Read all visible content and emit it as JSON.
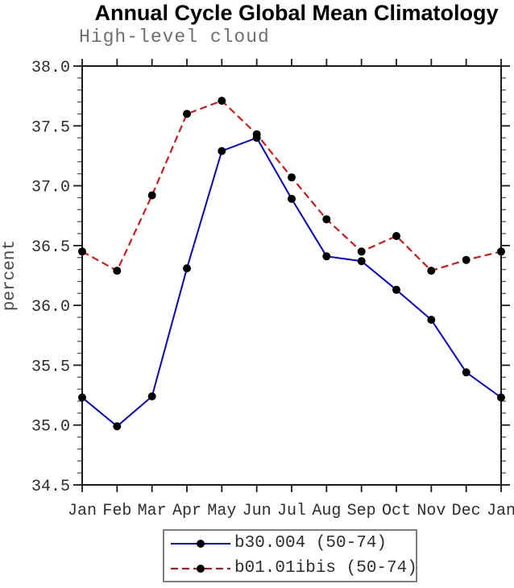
{
  "chart_data": {
    "type": "line",
    "title": "Annual Cycle Global Mean Climatology",
    "subtitle": "High-level cloud",
    "ylabel": "percent",
    "xlabel": "",
    "x_categories": [
      "Jan",
      "Feb",
      "Mar",
      "Apr",
      "May",
      "Jun",
      "Jul",
      "Aug",
      "Sep",
      "Oct",
      "Nov",
      "Dec",
      "Jan"
    ],
    "ylim": [
      34.5,
      38.0
    ],
    "ytick_step": 0.5,
    "ytick_minor_step": 0.1,
    "grid": false,
    "legend_position": "bottom-center",
    "frame_color": "#1a1a1a",
    "series": [
      {
        "name": "b30.004 (50-74)",
        "color": "#0000ee",
        "style": "solid",
        "marker": "circle",
        "marker_color": "#000000",
        "values": [
          35.23,
          34.99,
          35.24,
          36.31,
          37.29,
          37.4,
          36.89,
          36.41,
          36.37,
          36.13,
          35.88,
          35.44,
          35.23
        ]
      },
      {
        "name": "b01.01ibis (50-74)",
        "color": "#ee0000",
        "style": "dashed",
        "marker": "circle",
        "marker_color": "#000000",
        "values": [
          36.45,
          36.29,
          36.92,
          37.6,
          37.71,
          37.43,
          37.07,
          36.72,
          36.45,
          36.58,
          36.29,
          36.38,
          36.45
        ]
      }
    ]
  }
}
